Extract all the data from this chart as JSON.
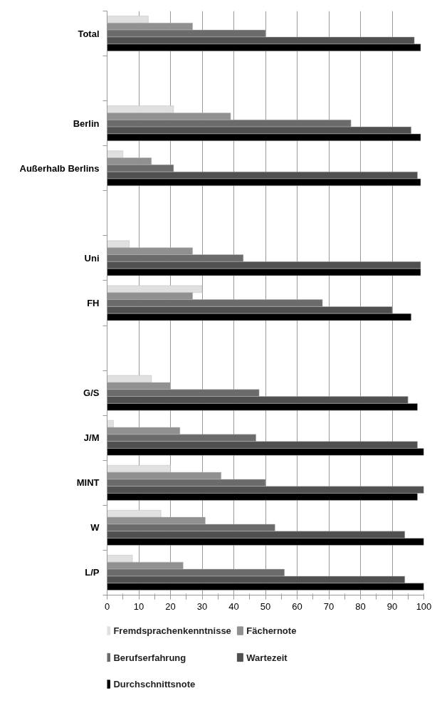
{
  "chart_data": {
    "type": "bar",
    "orientation": "horizontal",
    "categories": [
      "Total",
      null,
      "Berlin",
      "Außerhalb Berlins",
      null,
      "Uni",
      "FH",
      null,
      "G/S",
      "J/M",
      "MINT",
      "W",
      "L/P"
    ],
    "series": [
      {
        "name": "Fremdsprachenkenntnisse",
        "color": "#e0e0e0",
        "values": [
          13,
          null,
          21,
          5,
          null,
          7,
          30,
          null,
          14,
          2,
          20,
          17,
          8
        ]
      },
      {
        "name": "Fächernote",
        "color": "#909090",
        "values": [
          27,
          null,
          39,
          14,
          null,
          27,
          27,
          null,
          20,
          23,
          36,
          31,
          24
        ]
      },
      {
        "name": "Berufserfahrung",
        "color": "#6b6b6b",
        "values": [
          50,
          null,
          77,
          21,
          null,
          43,
          68,
          null,
          48,
          47,
          50,
          53,
          56
        ]
      },
      {
        "name": "Wartezeit",
        "color": "#505050",
        "values": [
          97,
          null,
          96,
          98,
          null,
          99,
          90,
          null,
          95,
          98,
          100,
          94,
          94
        ]
      },
      {
        "name": "Durchschnittsnote",
        "color": "#000000",
        "values": [
          99,
          null,
          99,
          99,
          null,
          99,
          96,
          null,
          98,
          100,
          98,
          100,
          100
        ]
      }
    ],
    "xlim": [
      0,
      100
    ],
    "xticks": [
      0,
      {
        "value": 5,
        "label": null
      },
      10,
      {
        "value": 15,
        "label": null
      },
      20,
      {
        "value": 25,
        "label": null
      },
      30,
      {
        "value": 35,
        "label": null
      },
      40,
      {
        "value": 45,
        "label": null
      },
      50,
      {
        "value": 55,
        "label": null
      },
      60,
      {
        "value": 65,
        "label": null
      },
      70,
      {
        "value": 75,
        "label": null
      },
      80,
      {
        "value": 85,
        "label": null
      },
      90,
      {
        "value": 95,
        "label": null
      },
      100
    ],
    "grid": "x",
    "legend": "bottom"
  }
}
